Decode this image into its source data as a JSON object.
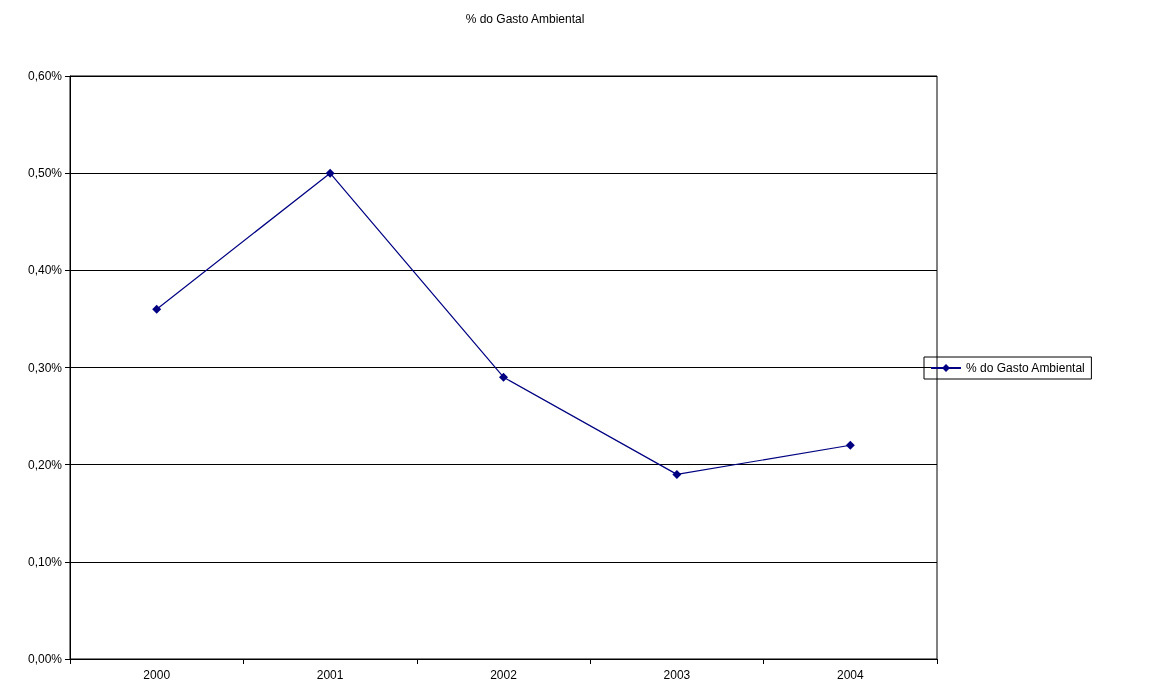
{
  "chart_data": {
    "type": "line",
    "title": "% do Gasto Ambiental",
    "categories": [
      "2000",
      "2001",
      "2002",
      "2003",
      "2004"
    ],
    "series": [
      {
        "name": "% do Gasto Ambiental",
        "color": "#000080",
        "values": [
          0.36,
          0.5,
          0.29,
          0.19,
          0.22
        ]
      }
    ],
    "ylim": [
      0,
      0.6
    ],
    "yticks": [
      {
        "value": 0,
        "label": "0,00%"
      },
      {
        "value": 0.1,
        "label": "0,10%"
      },
      {
        "value": 0.2,
        "label": "0,20%"
      },
      {
        "value": 0.3,
        "label": "0,30%"
      },
      {
        "value": 0.4,
        "label": "0,40%"
      },
      {
        "value": 0.5,
        "label": "0,50%"
      },
      {
        "value": 0.6,
        "label": "0,60%"
      }
    ],
    "grid": "y",
    "legend": "right",
    "marker": "diamond",
    "line_style": "solid"
  }
}
